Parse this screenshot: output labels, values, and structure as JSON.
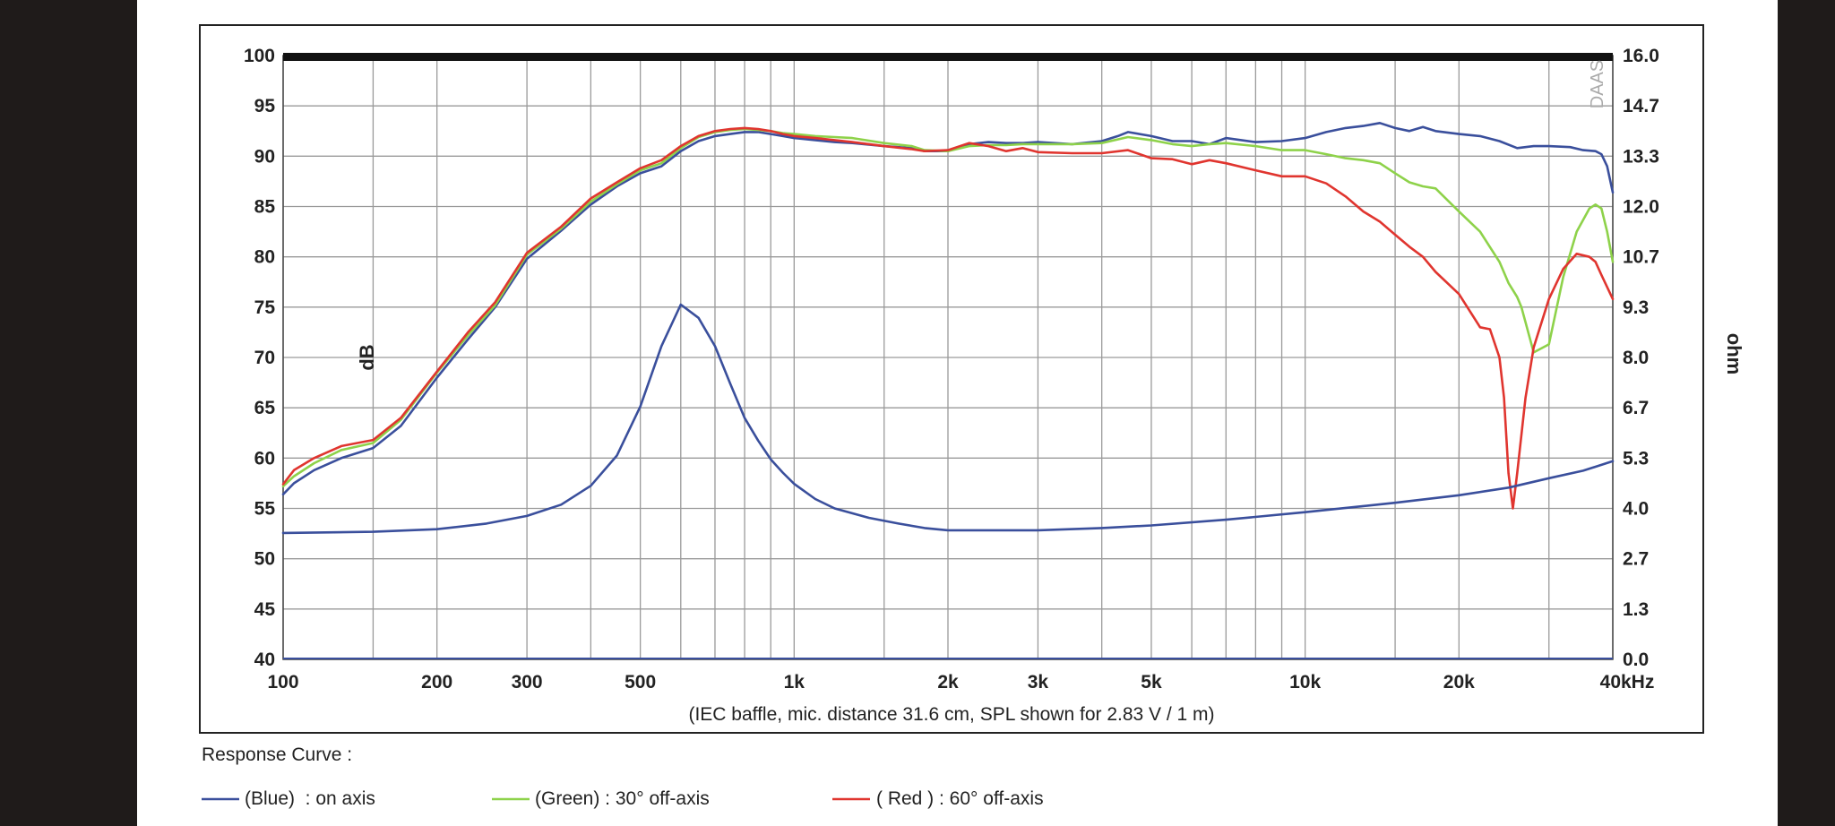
{
  "chart_data": {
    "type": "line",
    "watermark": "DAAS",
    "xlabel": "",
    "x_unit_suffix": "Hz",
    "x_scale": "log",
    "xlim": [
      100,
      40000
    ],
    "x_ticks": [
      {
        "value": 100,
        "label": "100"
      },
      {
        "value": 200,
        "label": "200"
      },
      {
        "value": 300,
        "label": "300"
      },
      {
        "value": 500,
        "label": "500"
      },
      {
        "value": 1000,
        "label": "1k"
      },
      {
        "value": 2000,
        "label": "2k"
      },
      {
        "value": 3000,
        "label": "3k"
      },
      {
        "value": 5000,
        "label": "5k"
      },
      {
        "value": 10000,
        "label": "10k"
      },
      {
        "value": 20000,
        "label": "20k"
      },
      {
        "value": 40000,
        "label": "40k"
      }
    ],
    "x_gridlines": [
      100,
      150,
      200,
      300,
      400,
      500,
      600,
      700,
      800,
      900,
      1000,
      1500,
      2000,
      3000,
      4000,
      5000,
      6000,
      7000,
      8000,
      9000,
      10000,
      15000,
      20000,
      30000,
      40000
    ],
    "ylabel_left": "dB",
    "ylim_left": [
      40,
      100
    ],
    "y_ticks_left": [
      "100",
      "95",
      "90",
      "85",
      "80",
      "75",
      "70",
      "65",
      "60",
      "55",
      "50",
      "45",
      "40"
    ],
    "ylabel_right": "ohm",
    "ylim_right": [
      0,
      16
    ],
    "y_ticks_right": [
      "16.0",
      "14.7",
      "13.3",
      "12.0",
      "10.7",
      "9.3",
      "8.0",
      "6.7",
      "5.3",
      "4.0",
      "2.7",
      "1.3",
      "0.0"
    ],
    "grid": true,
    "note": "(IEC baffle, mic. distance 31.6 cm, SPL shown for 2.83 V / 1 m)",
    "legend_title": "Response Curve :",
    "legend": [
      {
        "color": "#3a4f9c",
        "text": "(Blue)  : on axis"
      },
      {
        "color": "#8ed24a",
        "text": "(Green) : 30° off-axis"
      },
      {
        "color": "#e0352f",
        "text": "( Red ) : 60° off-axis"
      }
    ],
    "series": [
      {
        "color": "#3a4f9c",
        "axis": "left",
        "x": [
          100,
          105,
          115,
          130,
          150,
          170,
          200,
          230,
          260,
          300,
          350,
          400,
          450,
          500,
          550,
          600,
          650,
          700,
          750,
          800,
          850,
          900,
          950,
          1000,
          1100,
          1200,
          1300,
          1500,
          1700,
          1800,
          2000,
          2200,
          2400,
          2600,
          2800,
          3000,
          3500,
          4000,
          4300,
          4500,
          5000,
          5500,
          6000,
          6500,
          7000,
          8000,
          9000,
          10000,
          11000,
          12000,
          13000,
          14000,
          15000,
          16000,
          17000,
          18000,
          20000,
          22000,
          24000,
          26000,
          28000,
          30000,
          33000,
          35000,
          37000,
          38000,
          39000,
          40000
        ],
        "y": [
          56.4,
          57.5,
          58.8,
          60,
          61,
          63.2,
          68,
          71.8,
          75,
          79.8,
          82.6,
          85.2,
          87,
          88.3,
          89,
          90.5,
          91.5,
          92,
          92.2,
          92.4,
          92.4,
          92.2,
          92,
          91.8,
          91.6,
          91.4,
          91.3,
          91,
          90.8,
          90.5,
          90.5,
          91.2,
          91.4,
          91.3,
          91.3,
          91.4,
          91.2,
          91.5,
          92,
          92.4,
          92,
          91.5,
          91.5,
          91.2,
          91.8,
          91.4,
          91.5,
          91.8,
          92.4,
          92.8,
          93,
          93.3,
          92.8,
          92.5,
          92.9,
          92.5,
          92.2,
          92,
          91.5,
          90.8,
          91,
          91,
          90.9,
          90.6,
          90.5,
          90.2,
          89,
          86.4
        ]
      },
      {
        "color": "#8ed24a",
        "axis": "left",
        "x": [
          100,
          105,
          115,
          130,
          150,
          170,
          200,
          230,
          260,
          300,
          350,
          400,
          450,
          500,
          550,
          600,
          650,
          700,
          750,
          800,
          850,
          900,
          950,
          1000,
          1100,
          1200,
          1300,
          1500,
          1700,
          1800,
          2000,
          2200,
          2400,
          2600,
          2800,
          3000,
          3500,
          4000,
          4500,
          5000,
          5500,
          6000,
          6500,
          7000,
          8000,
          9000,
          10000,
          11000,
          12000,
          13000,
          14000,
          15000,
          16000,
          17000,
          18000,
          20000,
          22000,
          24000,
          25000,
          26000,
          26500,
          27000,
          28000,
          30000,
          32000,
          34000,
          36000,
          37000,
          38000,
          39000,
          40000
        ],
        "y": [
          57.2,
          58.2,
          59.5,
          60.8,
          61.5,
          63.8,
          68.5,
          72.2,
          75.2,
          80.2,
          82.8,
          85.5,
          87.2,
          88.6,
          89.3,
          90.8,
          91.9,
          92.4,
          92.6,
          92.7,
          92.6,
          92.5,
          92.3,
          92.2,
          92,
          91.9,
          91.8,
          91.3,
          91,
          90.6,
          90.5,
          91,
          91.1,
          91.1,
          91.2,
          91.2,
          91.2,
          91.3,
          91.9,
          91.6,
          91.2,
          91,
          91.2,
          91.3,
          91,
          90.6,
          90.6,
          90.2,
          89.8,
          89.6,
          89.3,
          88.3,
          87.4,
          87,
          86.8,
          84.5,
          82.5,
          79.5,
          77.4,
          76,
          75,
          73.5,
          70.5,
          71.3,
          78,
          82.5,
          84.8,
          85.2,
          84.8,
          82.5,
          79.5
        ]
      },
      {
        "color": "#e0352f",
        "axis": "left",
        "x": [
          100,
          105,
          115,
          130,
          150,
          170,
          200,
          230,
          260,
          300,
          350,
          400,
          450,
          500,
          550,
          600,
          650,
          700,
          750,
          800,
          850,
          900,
          950,
          1000,
          1100,
          1200,
          1300,
          1500,
          1700,
          1800,
          2000,
          2200,
          2400,
          2600,
          2800,
          3000,
          3500,
          4000,
          4500,
          5000,
          5500,
          6000,
          6500,
          7000,
          8000,
          9000,
          10000,
          11000,
          12000,
          13000,
          14000,
          15000,
          16000,
          17000,
          18000,
          20000,
          22000,
          23000,
          24000,
          24500,
          25000,
          25500,
          26000,
          27000,
          28000,
          30000,
          32000,
          34000,
          36000,
          37000,
          38000,
          39000,
          40000
        ],
        "y": [
          57.4,
          58.8,
          60,
          61.2,
          61.8,
          64,
          68.6,
          72.5,
          75.5,
          80.4,
          83,
          85.8,
          87.4,
          88.8,
          89.6,
          91,
          92,
          92.5,
          92.7,
          92.8,
          92.7,
          92.5,
          92.2,
          92,
          91.8,
          91.6,
          91.4,
          91,
          90.7,
          90.5,
          90.6,
          91.3,
          91,
          90.5,
          90.8,
          90.4,
          90.3,
          90.3,
          90.6,
          89.8,
          89.7,
          89.2,
          89.6,
          89.3,
          88.6,
          88,
          88,
          87.3,
          86,
          84.5,
          83.5,
          82.2,
          81,
          80,
          78.5,
          76.3,
          73,
          72.8,
          70,
          66,
          58.5,
          55,
          58.5,
          66,
          71,
          75.8,
          78.8,
          80.3,
          80,
          79.5,
          78.2,
          77,
          75.8
        ]
      },
      {
        "color": "#3a4f9c",
        "axis": "right",
        "x": [
          100,
          150,
          200,
          250,
          300,
          350,
          400,
          450,
          500,
          550,
          600,
          650,
          700,
          750,
          800,
          850,
          900,
          950,
          1000,
          1100,
          1200,
          1400,
          1600,
          1800,
          2000,
          2500,
          3000,
          4000,
          5000,
          7000,
          10000,
          15000,
          20000,
          25000,
          30000,
          35000,
          40000
        ],
        "y": [
          3.35,
          3.38,
          3.45,
          3.6,
          3.8,
          4.1,
          4.6,
          5.4,
          6.7,
          8.3,
          9.4,
          9.05,
          8.3,
          7.3,
          6.4,
          5.8,
          5.3,
          4.95,
          4.65,
          4.25,
          4.0,
          3.75,
          3.6,
          3.48,
          3.42,
          3.42,
          3.42,
          3.48,
          3.55,
          3.7,
          3.9,
          4.15,
          4.35,
          4.55,
          4.8,
          5.0,
          5.25
        ]
      }
    ]
  }
}
